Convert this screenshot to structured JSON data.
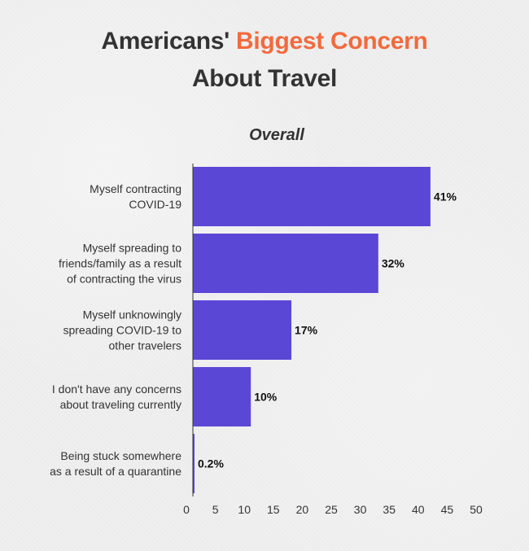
{
  "header": {
    "title_part1": "Americans'",
    "title_highlight": "Biggest Concern",
    "title_line2": "About Travel",
    "subtitle": "Overall"
  },
  "colors": {
    "bar": "#5b47d6",
    "title_text": "#333333",
    "title_highlight": "#f26a3d",
    "axis_line": "#333333"
  },
  "chart_data": {
    "type": "bar",
    "orientation": "horizontal",
    "title": "Americans' Biggest Concern About Travel",
    "subtitle": "Overall",
    "categories": [
      [
        "Myself contracting",
        "COVID-19"
      ],
      [
        "Myself spreading to",
        "friends/family as a result",
        "of contracting the virus"
      ],
      [
        "Myself unknowingly",
        "spreading COVID-19 to",
        "other travelers"
      ],
      [
        "I don't have any concerns",
        "about traveling currently"
      ],
      [
        "Being stuck somewhere",
        "as a result of a quarantine"
      ]
    ],
    "values": [
      41,
      32,
      17,
      10,
      0.2
    ],
    "value_labels": [
      "41%",
      "32%",
      "17%",
      "10%",
      "0.2%"
    ],
    "xlim": [
      0,
      50
    ],
    "x_ticks": [
      0,
      5,
      10,
      15,
      20,
      25,
      30,
      35,
      40,
      45,
      50
    ],
    "grid": false,
    "legend": "none"
  }
}
